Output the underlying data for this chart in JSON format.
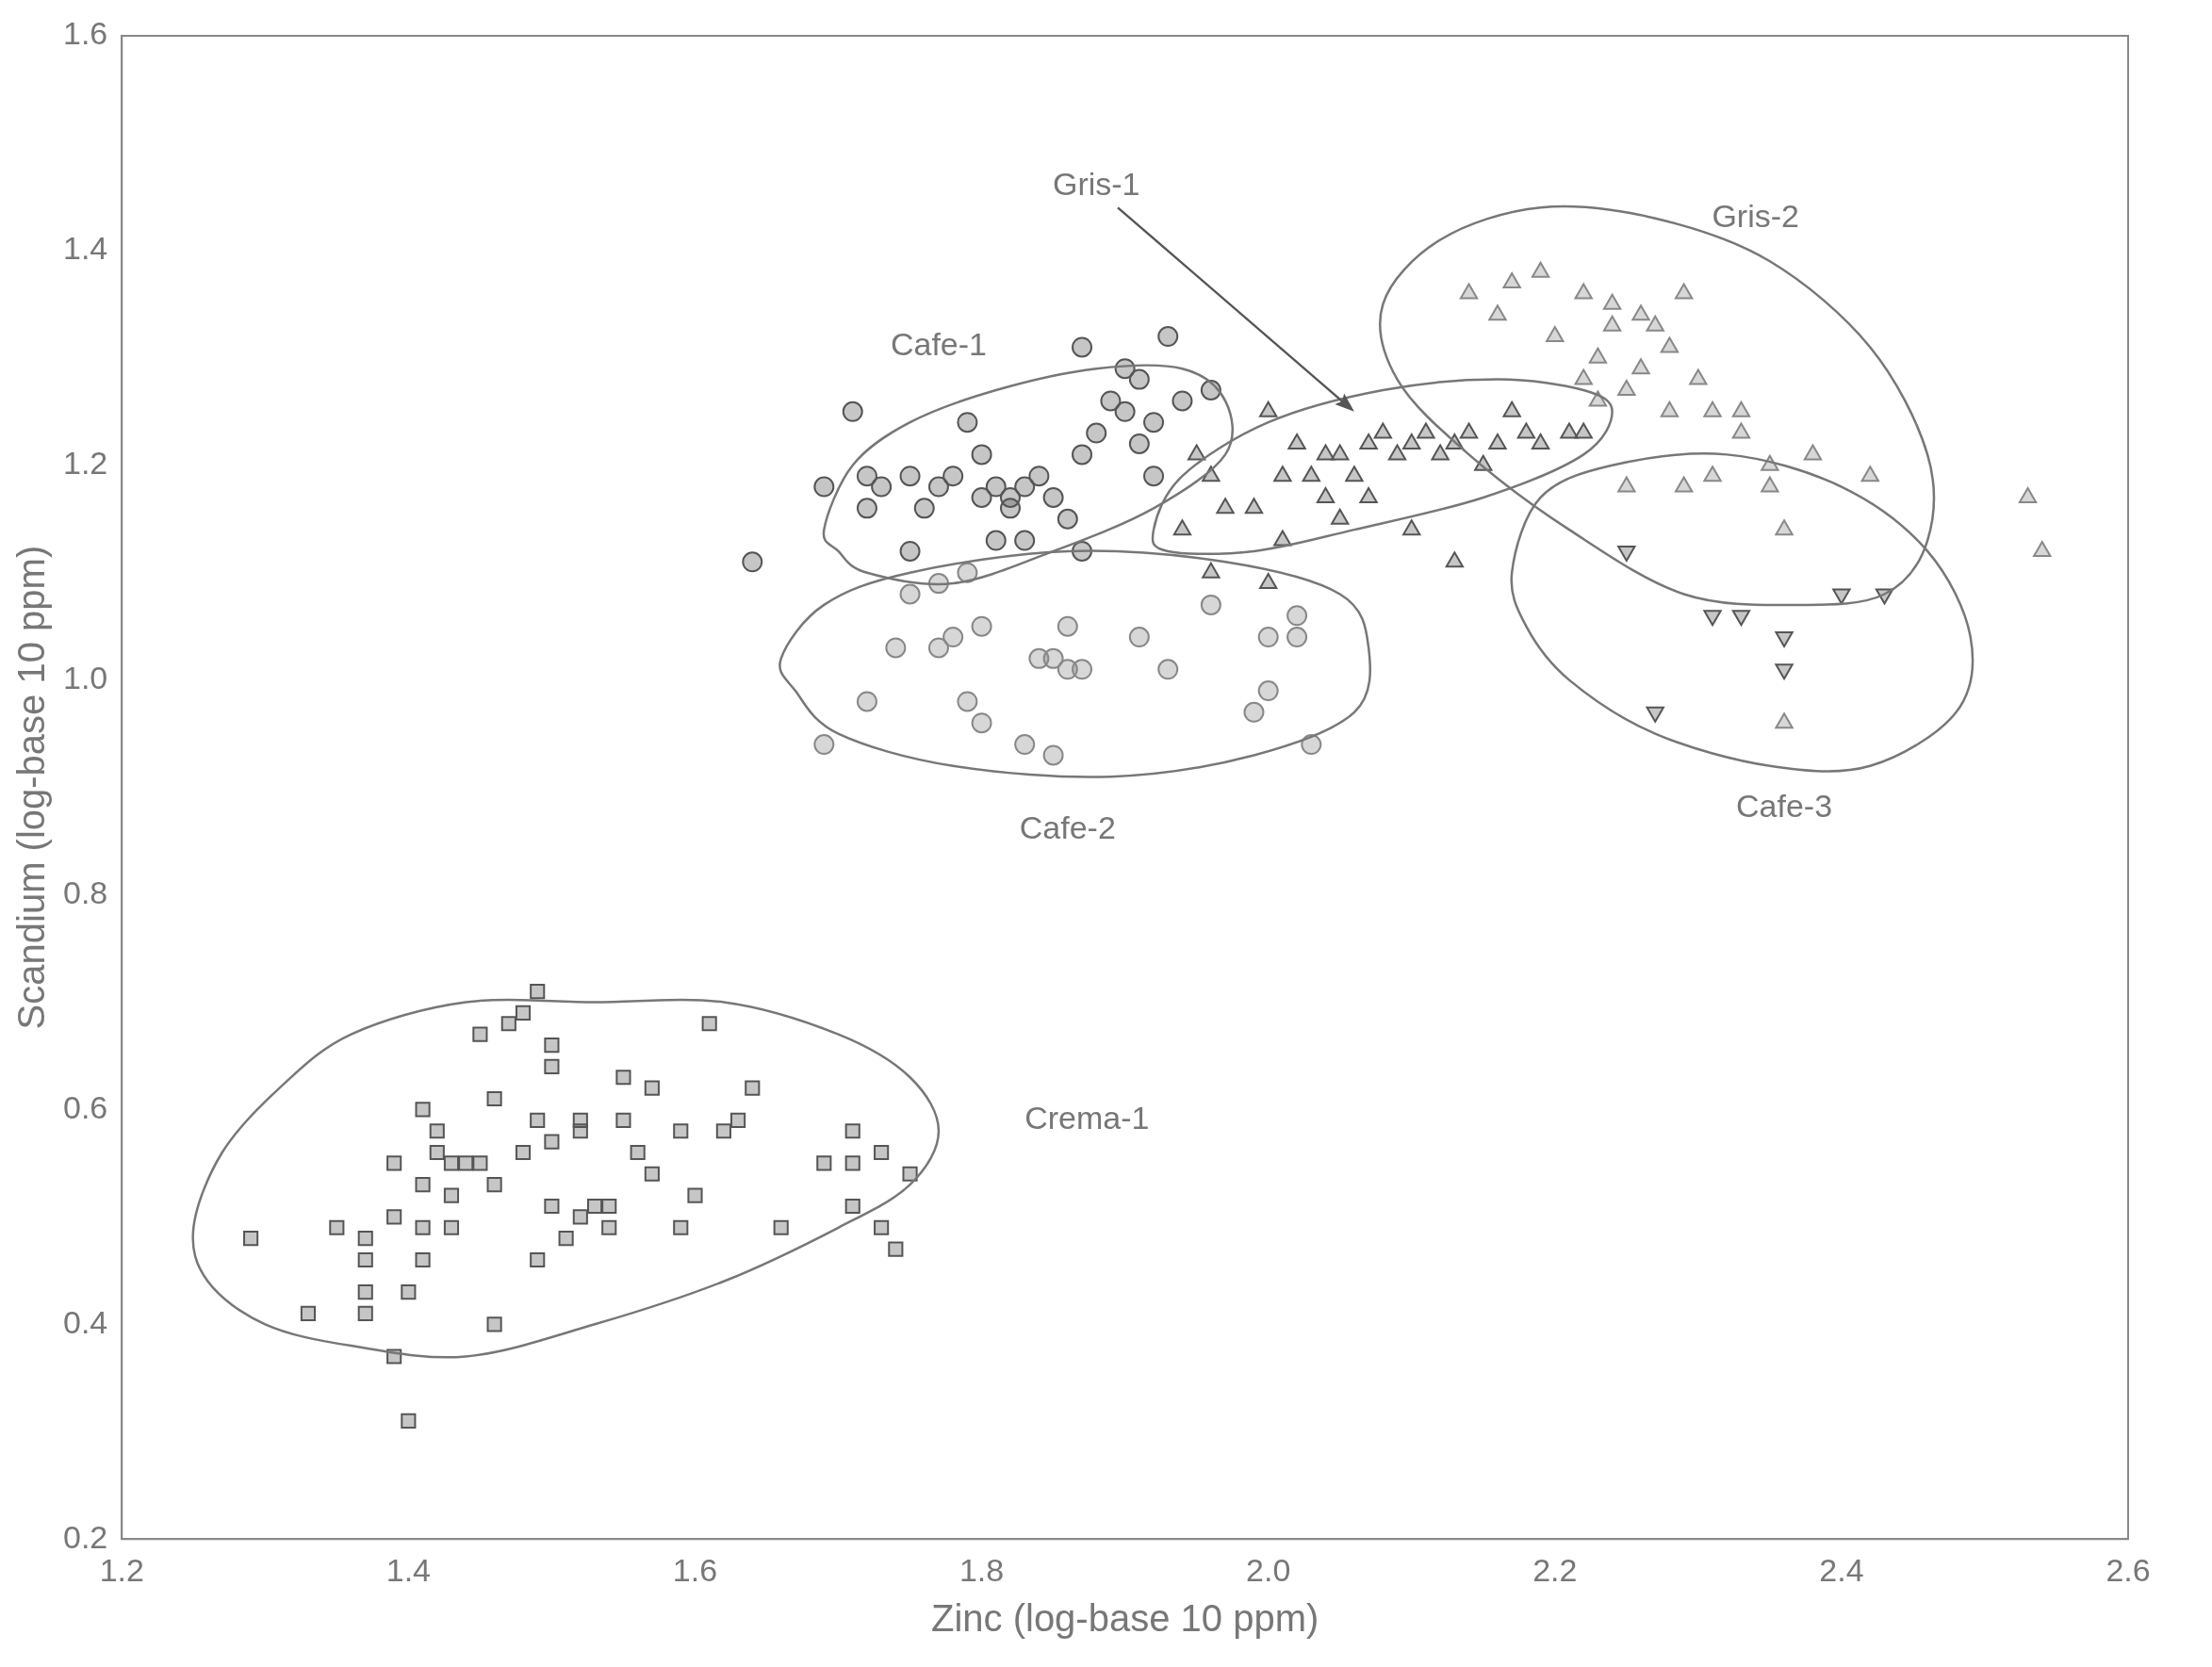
{
  "chart_data": {
    "type": "scatter",
    "xlabel": "Zinc (log-base 10 ppm)",
    "ylabel": "Scandium (log-base 10 ppm)",
    "xlim": [
      1.2,
      2.6
    ],
    "xticks": [
      {
        "value": 1.2,
        "label": "1.2"
      },
      {
        "value": 1.4,
        "label": "1.4"
      },
      {
        "value": 1.6,
        "label": "1.6"
      },
      {
        "value": 1.8,
        "label": "1.8"
      },
      {
        "value": 2.0,
        "label": "2.0"
      },
      {
        "value": 2.2,
        "label": "2.2"
      },
      {
        "value": 2.4,
        "label": "2.4"
      },
      {
        "value": 2.6,
        "label": "2.6"
      }
    ],
    "ylim": [
      0.2,
      1.6
    ],
    "yticks": [
      {
        "value": 0.2,
        "label": "0.2"
      },
      {
        "value": 0.4,
        "label": "0.4"
      },
      {
        "value": 0.6,
        "label": "0.6"
      },
      {
        "value": 0.8,
        "label": "0.8"
      },
      {
        "value": 1.0,
        "label": "1.0"
      },
      {
        "value": 1.2,
        "label": "1.2"
      },
      {
        "value": 1.4,
        "label": "1.4"
      },
      {
        "value": 1.6,
        "label": "1.6"
      }
    ],
    "grid": false,
    "legend": false,
    "series": [
      {
        "color": "#555555",
        "marker": "square",
        "x": [
          1.29,
          1.33,
          1.35,
          1.37,
          1.37,
          1.37,
          1.37,
          1.39,
          1.39,
          1.39,
          1.4,
          1.4,
          1.41,
          1.41,
          1.41,
          1.41,
          1.42,
          1.42,
          1.43,
          1.43,
          1.43,
          1.44,
          1.45,
          1.45,
          1.46,
          1.46,
          1.46,
          1.47,
          1.48,
          1.48,
          1.49,
          1.49,
          1.49,
          1.5,
          1.5,
          1.5,
          1.5,
          1.51,
          1.52,
          1.52,
          1.52,
          1.53,
          1.54,
          1.54,
          1.55,
          1.55,
          1.56,
          1.57,
          1.57,
          1.59,
          1.59,
          1.6,
          1.61,
          1.62,
          1.63,
          1.64,
          1.66,
          1.69,
          1.71,
          1.71,
          1.71,
          1.73,
          1.73,
          1.74,
          1.75
        ],
        "values": [
          0.48,
          0.41,
          0.49,
          0.48,
          0.46,
          0.43,
          0.41,
          0.37,
          0.5,
          0.55,
          0.31,
          0.43,
          0.46,
          0.49,
          0.53,
          0.6,
          0.56,
          0.58,
          0.55,
          0.49,
          0.52,
          0.55,
          0.55,
          0.67,
          0.61,
          0.53,
          0.4,
          0.68,
          0.56,
          0.69,
          0.71,
          0.59,
          0.46,
          0.66,
          0.64,
          0.51,
          0.57,
          0.48,
          0.59,
          0.5,
          0.58,
          0.51,
          0.51,
          0.49,
          0.63,
          0.59,
          0.56,
          0.62,
          0.54,
          0.58,
          0.49,
          0.52,
          0.68,
          0.58,
          0.59,
          0.62,
          0.49,
          0.55,
          0.58,
          0.55,
          0.51,
          0.56,
          0.49,
          0.47,
          0.54
        ]
      },
      {
        "color": "#555555",
        "marker": "circle",
        "x": [
          1.64,
          1.71,
          1.69,
          1.72,
          1.73,
          1.75,
          1.75,
          1.76,
          1.77,
          1.78,
          1.8,
          1.8,
          1.81,
          1.82,
          1.82,
          1.83,
          1.84,
          1.85,
          1.83,
          1.86,
          1.87,
          1.87,
          1.88,
          1.89,
          1.9,
          1.9,
          1.91,
          1.91,
          1.92,
          1.93,
          1.94,
          1.96,
          1.72,
          1.81,
          1.79,
          1.92,
          1.87
        ],
        "values": [
          1.11,
          1.25,
          1.18,
          1.16,
          1.18,
          1.19,
          1.12,
          1.16,
          1.18,
          1.19,
          1.17,
          1.21,
          1.18,
          1.17,
          1.16,
          1.18,
          1.19,
          1.17,
          1.13,
          1.15,
          1.21,
          1.31,
          1.23,
          1.26,
          1.29,
          1.25,
          1.22,
          1.28,
          1.24,
          1.32,
          1.26,
          1.27,
          1.19,
          1.13,
          1.24,
          1.19,
          1.12
        ]
      },
      {
        "color": "#888888",
        "marker": "circle",
        "x": [
          1.69,
          1.72,
          1.74,
          1.77,
          1.78,
          1.8,
          1.79,
          1.8,
          1.83,
          1.85,
          1.86,
          1.85,
          1.86,
          1.87,
          1.84,
          1.91,
          1.93,
          1.96,
          2.0,
          1.99,
          2.0,
          2.02,
          2.02,
          2.03,
          1.75,
          1.77,
          1.79
        ],
        "values": [
          0.94,
          0.98,
          1.03,
          1.03,
          1.04,
          1.05,
          0.98,
          0.96,
          0.94,
          0.93,
          1.05,
          1.02,
          1.01,
          1.01,
          1.02,
          1.04,
          1.01,
          1.07,
          1.04,
          0.97,
          0.99,
          1.06,
          1.04,
          0.94,
          1.08,
          1.09,
          1.1
        ]
      },
      {
        "color": "#555555",
        "marker": "triangle",
        "x": [
          1.94,
          1.95,
          1.96,
          1.97,
          1.99,
          2.0,
          2.01,
          2.0,
          2.01,
          2.02,
          2.03,
          2.04,
          2.04,
          2.05,
          2.06,
          2.07,
          2.07,
          2.08,
          2.09,
          2.1,
          2.1,
          2.11,
          2.12,
          2.13,
          2.13,
          2.14,
          2.15,
          2.16,
          2.17,
          2.18,
          2.19,
          2.21,
          2.22,
          1.96,
          2.05
        ],
        "values": [
          1.14,
          1.21,
          1.19,
          1.16,
          1.16,
          1.25,
          1.19,
          1.09,
          1.13,
          1.22,
          1.19,
          1.21,
          1.17,
          1.21,
          1.19,
          1.22,
          1.17,
          1.23,
          1.21,
          1.22,
          1.14,
          1.23,
          1.21,
          1.22,
          1.11,
          1.23,
          1.2,
          1.22,
          1.25,
          1.23,
          1.22,
          1.23,
          1.23,
          1.1,
          1.15
        ]
      },
      {
        "color": "#888888",
        "marker": "triangle",
        "x": [
          2.14,
          2.16,
          2.17,
          2.19,
          2.2,
          2.22,
          2.22,
          2.23,
          2.23,
          2.24,
          2.24,
          2.25,
          2.25,
          2.26,
          2.26,
          2.27,
          2.28,
          2.29,
          2.28,
          2.29,
          2.3,
          2.31,
          2.31,
          2.33,
          2.33,
          2.35,
          2.35,
          2.36,
          2.38,
          2.42,
          2.36,
          2.53,
          2.54
        ],
        "values": [
          1.36,
          1.34,
          1.37,
          1.38,
          1.32,
          1.36,
          1.28,
          1.26,
          1.3,
          1.33,
          1.35,
          1.27,
          1.18,
          1.34,
          1.29,
          1.33,
          1.31,
          1.36,
          1.25,
          1.18,
          1.28,
          1.25,
          1.19,
          1.23,
          1.25,
          1.18,
          1.2,
          1.14,
          1.21,
          1.19,
          0.96,
          1.17,
          1.12
        ]
      },
      {
        "color": "#555555",
        "marker": "triangle-down",
        "x": [
          2.25,
          2.31,
          2.33,
          2.36,
          2.36,
          2.4,
          2.43,
          2.27
        ],
        "values": [
          1.12,
          1.06,
          1.06,
          1.04,
          1.01,
          1.08,
          1.08,
          0.97
        ]
      }
    ],
    "annotations": [
      "Crema-1",
      "Cafe-1",
      "Cafe-2",
      "Gris-1",
      "Gris-2",
      "Cafe-3"
    ]
  }
}
